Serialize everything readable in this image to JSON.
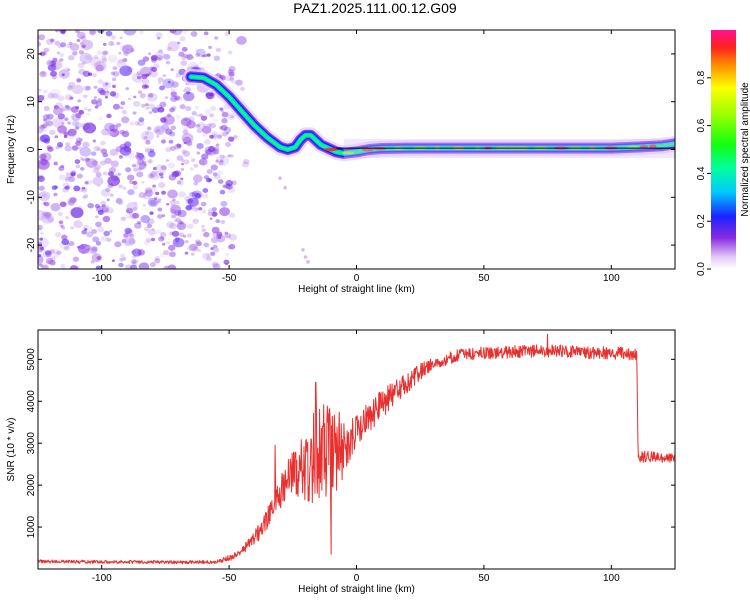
{
  "title": "PAZ1.2025.111.00.12.G09",
  "colors": {
    "snr_line": "#e8302e",
    "ridge_dark": "#1a22ff",
    "scatter": "#8a2be2"
  },
  "chart_data": [
    {
      "type": "heatmap",
      "name": "spectrogram",
      "xlabel": "Height of straight line (km)",
      "ylabel": "Frequency (Hz)",
      "xlim": [
        -125,
        125
      ],
      "ylim": [
        -25,
        25
      ],
      "xticks": [
        -100,
        -50,
        0,
        50,
        100
      ],
      "yticks": [
        -20,
        -10,
        0,
        10,
        20
      ],
      "noise_region_x": [
        -125,
        -48
      ],
      "ridge": {
        "x": [
          -65,
          -60,
          -55,
          -50,
          -45,
          -40,
          -35,
          -30,
          -27,
          -24,
          -22,
          -20,
          -18,
          -16,
          -14,
          -12,
          -10,
          -8,
          -5,
          0,
          5,
          10,
          20,
          40,
          60,
          80,
          100,
          110,
          120,
          125
        ],
        "y": [
          15.2,
          15,
          13.5,
          11,
          8,
          5,
          2.5,
          0.5,
          0,
          0.5,
          2,
          3,
          3,
          2,
          1,
          0.5,
          0,
          -0.5,
          -0.8,
          -0.5,
          0,
          0.2,
          0.3,
          0.3,
          0.3,
          0.3,
          0.3,
          0.5,
          0.8,
          1.2
        ]
      },
      "colorbar": {
        "label": "Normalized spectral amplitude",
        "range": [
          0,
          1
        ],
        "ticks": [
          0.0,
          0.2,
          0.4,
          0.6,
          0.8
        ],
        "tick_labels": [
          "0.0",
          "0.2",
          "0.4",
          "0.6",
          "0.8"
        ]
      }
    },
    {
      "type": "line",
      "name": "snr",
      "xlabel": "Height of straight line (km)",
      "ylabel": "SNR (10 * v/v)",
      "xlim": [
        -125,
        125
      ],
      "ylim": [
        0,
        5700
      ],
      "xticks": [
        -100,
        -50,
        0,
        50,
        100
      ],
      "yticks": [
        1000,
        2000,
        3000,
        4000,
        5000
      ],
      "envelope": {
        "x": [
          -125,
          -100,
          -70,
          -55,
          -48,
          -42,
          -38,
          -34,
          -30,
          -26,
          -22,
          -18,
          -14,
          -10,
          -6,
          -2,
          2,
          6,
          10,
          15,
          20,
          25,
          30,
          35,
          40,
          50,
          60,
          70,
          80,
          90,
          100,
          105,
          110,
          110.5,
          112,
          115,
          120,
          125
        ],
        "y": [
          180,
          170,
          160,
          170,
          300,
          600,
          900,
          1300,
          1800,
          2300,
          2400,
          2600,
          2700,
          2800,
          2900,
          3100,
          3400,
          3700,
          3950,
          4200,
          4450,
          4700,
          4900,
          5000,
          5100,
          5150,
          5180,
          5200,
          5200,
          5150,
          5150,
          5150,
          5100,
          2700,
          2650,
          2700,
          2650,
          2650
        ]
      },
      "noise_amplitude": {
        "x": [
          -125,
          -55,
          -45,
          -35,
          -25,
          -20,
          -15,
          -10,
          -5,
          0,
          10,
          30,
          110,
          112,
          125
        ],
        "y": [
          40,
          40,
          100,
          250,
          500,
          900,
          1200,
          1200,
          700,
          400,
          350,
          150,
          150,
          150,
          100
        ]
      },
      "peaks": [
        {
          "x": -16,
          "y": 4450
        },
        {
          "x": -13,
          "y": 3400
        },
        {
          "x": -10,
          "y": 350
        },
        {
          "x": -11,
          "y": 3700
        },
        {
          "x": 75,
          "y": 5600
        },
        {
          "x": -32,
          "y": 2950
        }
      ]
    }
  ]
}
